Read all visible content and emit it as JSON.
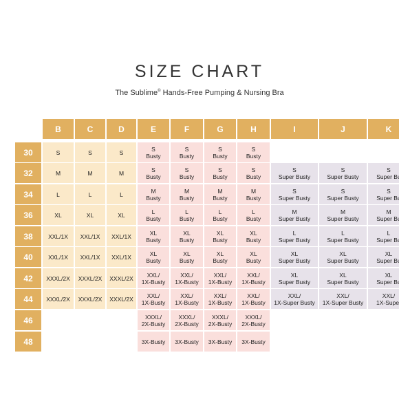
{
  "title": "SIZE CHART",
  "subtitle": {
    "text": "The Sublime",
    "reg": "®",
    "rest": " Hands-Free Pumping & Nursing Bra"
  },
  "colors": {
    "header": "#e1b060",
    "group_bd": "#fbe9c9",
    "group_eh": "#fadfdc",
    "group_ik": "#e7e2ea"
  },
  "columns": [
    "B",
    "C",
    "D",
    "E",
    "F",
    "G",
    "H",
    "I",
    "J",
    "K"
  ],
  "rows": [
    "30",
    "32",
    "34",
    "36",
    "38",
    "40",
    "42",
    "44",
    "46",
    "48"
  ],
  "cells": [
    [
      [
        "S"
      ],
      [
        "S"
      ],
      [
        "S"
      ],
      [
        "S",
        "Busty"
      ],
      [
        "S",
        "Busty"
      ],
      [
        "S",
        "Busty"
      ],
      [
        "S",
        "Busty"
      ],
      [],
      [],
      []
    ],
    [
      [
        "M"
      ],
      [
        "M"
      ],
      [
        "M"
      ],
      [
        "S",
        "Busty"
      ],
      [
        "S",
        "Busty"
      ],
      [
        "S",
        "Busty"
      ],
      [
        "S",
        "Busty"
      ],
      [
        "S",
        "Super Busty"
      ],
      [
        "S",
        "Super Busty"
      ],
      [
        "S",
        "Super Bu"
      ]
    ],
    [
      [
        "L"
      ],
      [
        "L"
      ],
      [
        "L"
      ],
      [
        "M",
        "Busty"
      ],
      [
        "M",
        "Busty"
      ],
      [
        "M",
        "Busty"
      ],
      [
        "M",
        "Busty"
      ],
      [
        "S",
        "Super Busty"
      ],
      [
        "S",
        "Super Busty"
      ],
      [
        "S",
        "Super Bu"
      ]
    ],
    [
      [
        "XL"
      ],
      [
        "XL"
      ],
      [
        "XL"
      ],
      [
        "L",
        "Busty"
      ],
      [
        "L",
        "Busty"
      ],
      [
        "L",
        "Busty"
      ],
      [
        "L",
        "Busty"
      ],
      [
        "M",
        "Super Busty"
      ],
      [
        "M",
        "Super Busty"
      ],
      [
        "M",
        "Super Bu"
      ]
    ],
    [
      [
        "XXL/1X"
      ],
      [
        "XXL/1X"
      ],
      [
        "XXL/1X"
      ],
      [
        "XL",
        "Busty"
      ],
      [
        "XL",
        "Busty"
      ],
      [
        "XL",
        "Busty"
      ],
      [
        "XL",
        "Busty"
      ],
      [
        "L",
        "Super Busty"
      ],
      [
        "L",
        "Super Busty"
      ],
      [
        "L",
        "Super Bu"
      ]
    ],
    [
      [
        "XXL/1X"
      ],
      [
        "XXL/1X"
      ],
      [
        "XXL/1X"
      ],
      [
        "XL",
        "Busty"
      ],
      [
        "XL",
        "Busty"
      ],
      [
        "XL",
        "Busty"
      ],
      [
        "XL",
        "Busty"
      ],
      [
        "XL",
        "Super Busty"
      ],
      [
        "XL",
        "Super Busty"
      ],
      [
        "XL",
        "Super Bu"
      ]
    ],
    [
      [
        "XXXL/2X"
      ],
      [
        "XXXL/2X"
      ],
      [
        "XXXL/2X"
      ],
      [
        "XXL/",
        "1X-Busty"
      ],
      [
        "XXL/",
        "1X-Busty"
      ],
      [
        "XXL/",
        "1X-Busty"
      ],
      [
        "XXL/",
        "1X-Busty"
      ],
      [
        "XL",
        "Super Busty"
      ],
      [
        "XL",
        "Super Busty"
      ],
      [
        "XL",
        "Super Bu"
      ]
    ],
    [
      [
        "XXXL/2X"
      ],
      [
        "XXXL/2X"
      ],
      [
        "XXXL/2X"
      ],
      [
        "XXL/",
        "1X-Busty"
      ],
      [
        "XXL/",
        "1X-Busty"
      ],
      [
        "XXL/",
        "1X-Busty"
      ],
      [
        "XXL/",
        "1X-Busty"
      ],
      [
        "XXL/",
        "1X-Super Busty"
      ],
      [
        "XXL/",
        "1X-Super Busty"
      ],
      [
        "XXL/",
        "1X-Super"
      ]
    ],
    [
      [],
      [],
      [],
      [
        "XXXL/",
        "2X-Busty"
      ],
      [
        "XXXL/",
        "2X-Busty"
      ],
      [
        "XXXL/",
        "2X-Busty"
      ],
      [
        "XXXL/",
        "2X-Busty"
      ],
      [],
      [],
      []
    ],
    [
      [],
      [],
      [],
      [
        "3X-Busty"
      ],
      [
        "3X-Busty"
      ],
      [
        "3X-Busty"
      ],
      [
        "3X-Busty"
      ],
      [],
      [],
      []
    ]
  ]
}
